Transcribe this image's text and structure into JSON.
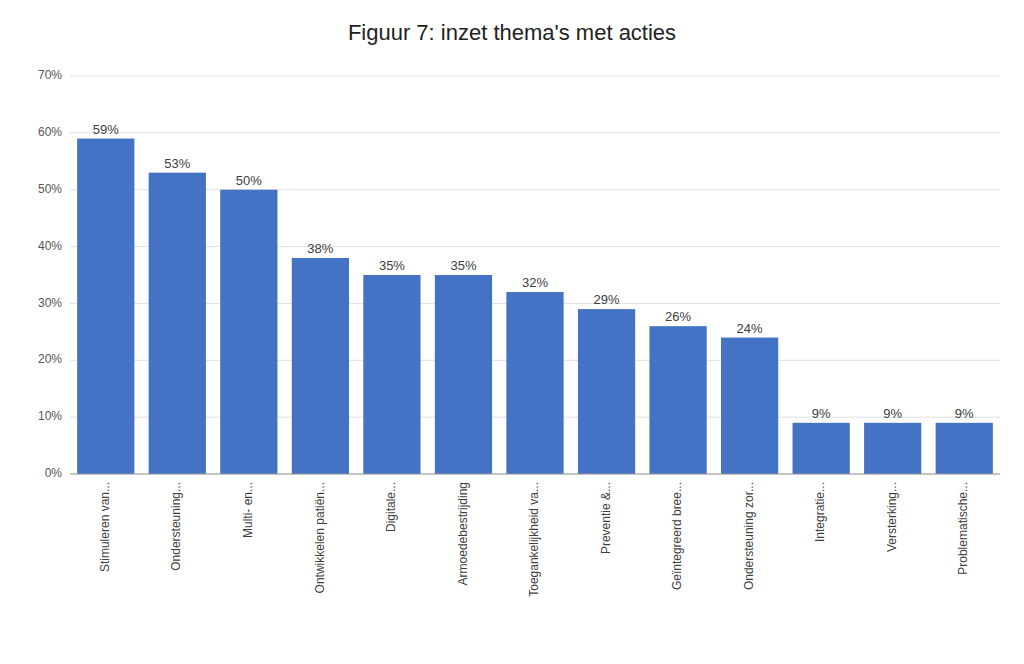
{
  "chart_data": {
    "type": "bar",
    "title": "Figuur 7: inzet thema's met acties",
    "categories": [
      "Stimuleren van...",
      "Ondersteuning...",
      "Multi- en...",
      "Ontwikkelen patiën...",
      "Digitale...",
      "Armoedebestrijding",
      "Toegankelijkheid va...",
      "Preventie &...",
      "Geïntegreerd bree...",
      "Ondersteuning zor...",
      "Integratie...",
      "Versterking...",
      "Problematische..."
    ],
    "values": [
      0.59,
      0.53,
      0.5,
      0.38,
      0.35,
      0.35,
      0.32,
      0.29,
      0.26,
      0.24,
      0.09,
      0.09,
      0.09
    ],
    "value_labels": [
      "59%",
      "53%",
      "50%",
      "38%",
      "35%",
      "35%",
      "32%",
      "29%",
      "26%",
      "24%",
      "9%",
      "9%",
      "9%"
    ],
    "data_labels": true,
    "color": "#4472C4",
    "ylim": [
      0,
      0.7
    ],
    "yticks": [
      {
        "value": 0.0,
        "label": "0%"
      },
      {
        "value": 0.1,
        "label": "10%"
      },
      {
        "value": 0.2,
        "label": "20%"
      },
      {
        "value": 0.3,
        "label": "30%"
      },
      {
        "value": 0.4,
        "label": "40%"
      },
      {
        "value": 0.5,
        "label": "50%"
      },
      {
        "value": 0.6,
        "label": "60%"
      },
      {
        "value": 0.7,
        "label": "70%"
      }
    ],
    "grid": true
  }
}
